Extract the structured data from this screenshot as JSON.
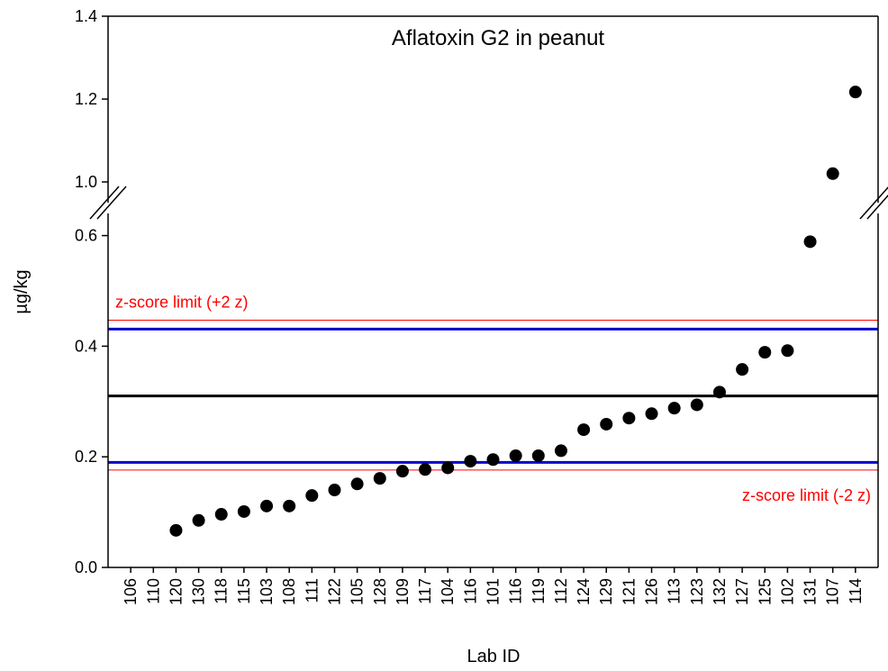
{
  "chart_data": {
    "type": "scatter",
    "title": "Aflatoxin G2 in peanut",
    "x_label": "Lab ID",
    "y_label": "µg/kg",
    "categories": [
      "106",
      "110",
      "120",
      "130",
      "118",
      "115",
      "103",
      "108",
      "111",
      "122",
      "105",
      "128",
      "109",
      "117",
      "104",
      "116",
      "101",
      "116",
      "119",
      "112",
      "124",
      "129",
      "121",
      "126",
      "113",
      "123",
      "132",
      "127",
      "125",
      "102",
      "131",
      "107",
      "114"
    ],
    "values": [
      null,
      null,
      0.067,
      0.085,
      0.096,
      0.101,
      0.111,
      0.111,
      0.13,
      0.14,
      0.151,
      0.161,
      0.174,
      0.177,
      0.18,
      0.192,
      0.195,
      0.202,
      0.202,
      0.211,
      0.249,
      0.259,
      0.27,
      0.278,
      0.288,
      0.294,
      0.317,
      0.358,
      0.389,
      0.392,
      0.589,
      1.02,
      1.217
    ],
    "color": "#000000",
    "ylim": [
      0,
      1.4
    ],
    "y_break": [
      0.64,
      0.95
    ],
    "yticks": [
      {
        "value": 0,
        "label": "0.0"
      },
      0.2,
      0.4,
      0.6,
      {
        "value": 1,
        "label": "1.0"
      },
      1.2,
      1.4
    ],
    "reference_lines": [
      {
        "value": 0.31,
        "color": "#000000"
      },
      {
        "value": 0.431,
        "color": "#0000cc"
      },
      {
        "value": 0.19,
        "color": "#0000cc"
      },
      {
        "value": 0.447,
        "color": "#ff0000",
        "label": "z-score limit (+2 z)"
      },
      {
        "value": 0.176,
        "color": "#ff0000",
        "label": "z-score limit (-2 z)"
      }
    ]
  }
}
